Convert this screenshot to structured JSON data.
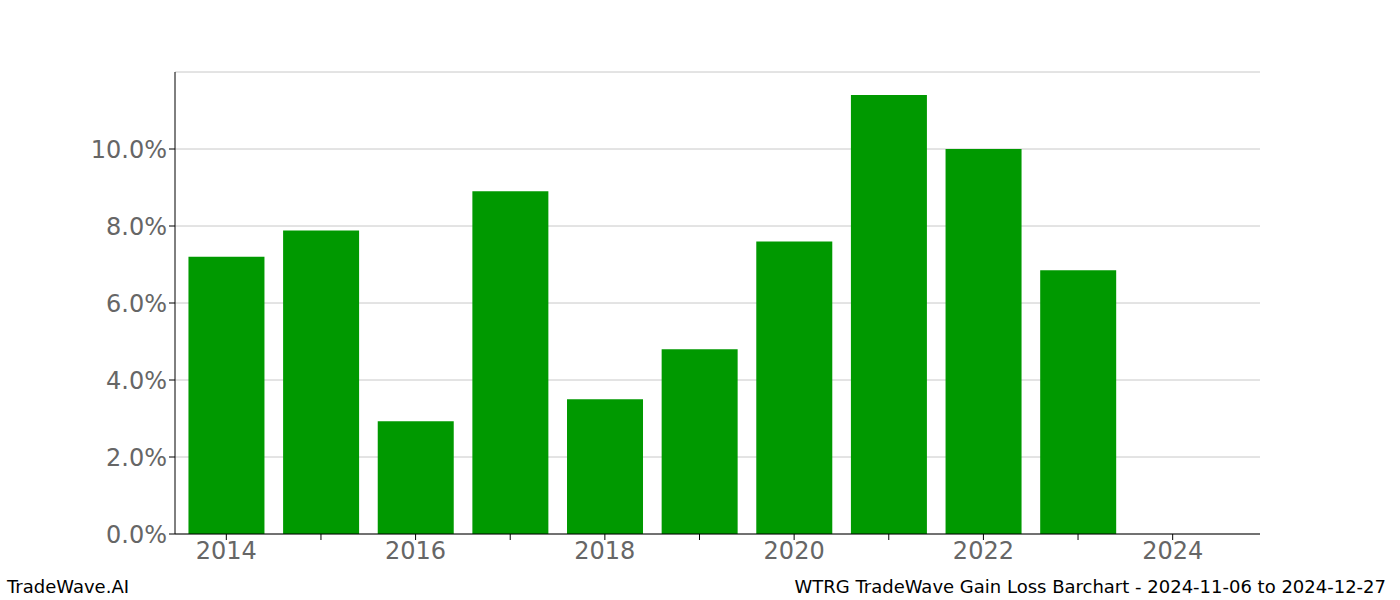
{
  "chart_data": {
    "type": "bar",
    "title": "WTRG TradeWave Gain Loss Barchart - 2024-11-06 to 2024-12-27",
    "annotations": [
      "TradeWave.AI"
    ],
    "categories": [
      "2014",
      null,
      "2016",
      null,
      "2018",
      null,
      "2020",
      null,
      "2022",
      null,
      "2024"
    ],
    "values": [
      7.2,
      7.88,
      2.93,
      8.9,
      3.5,
      4.8,
      7.6,
      11.4,
      10.0,
      6.85,
      null
    ],
    "color": "#009900",
    "ylim": [
      0,
      12
    ],
    "yticks": [
      {
        "value": 0,
        "label": "0.0%"
      },
      {
        "value": 2,
        "label": "2.0%"
      },
      {
        "value": 4,
        "label": "4.0%"
      },
      {
        "value": 6,
        "label": "6.0%"
      },
      {
        "value": 8,
        "label": "8.0%"
      },
      {
        "value": 10,
        "label": "10.0%"
      }
    ],
    "grid": true
  }
}
